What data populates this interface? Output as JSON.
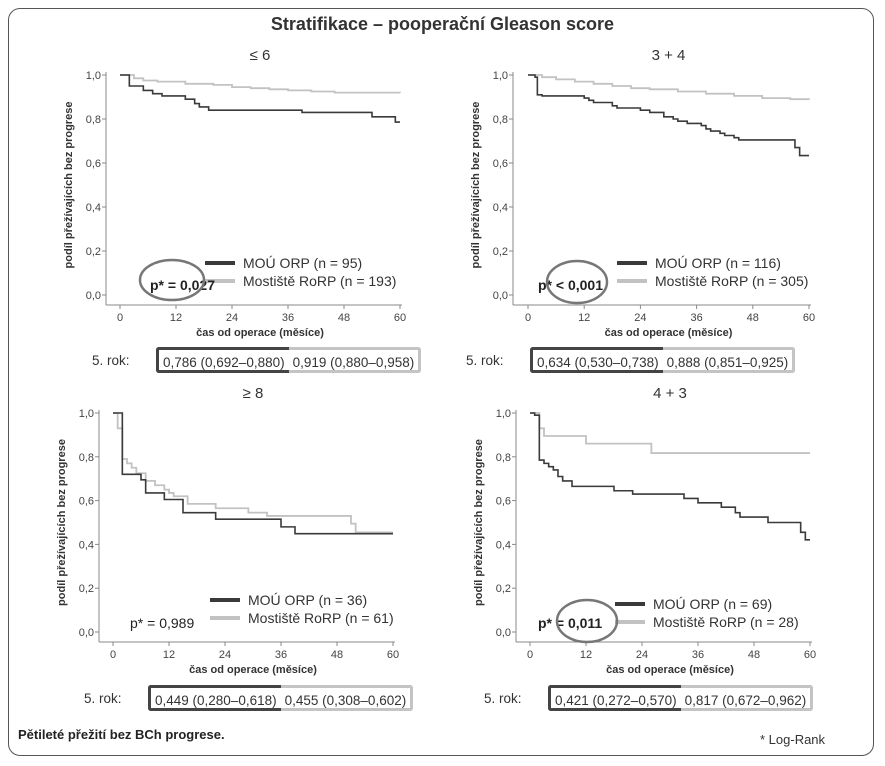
{
  "title": "Stratifikace – pooperační Gleason score",
  "caption": "Pětileté přežití bez BCh progrese.",
  "footnote": "* Log-Rank",
  "year_label": "5. rok:",
  "colors": {
    "orp": "#3a3a3a",
    "rorp": "#c2c2c2",
    "circle": "#777777"
  },
  "chart_data": [
    {
      "type": "line",
      "title": "≤ 6",
      "xlabel": "čas od operace (měsíce)",
      "ylabel": "podíl přežívajících bez progrese",
      "xlim": [
        0,
        60
      ],
      "ylim": [
        0,
        1
      ],
      "xticks": [
        "0",
        "12",
        "24",
        "36",
        "48",
        "60"
      ],
      "yticks": [
        "0,0",
        "0,2",
        "0,4",
        "0,6",
        "0,8",
        "1,0"
      ],
      "p_value": "p* = 0,027",
      "p_circled": true,
      "p_bold": true,
      "series": [
        {
          "name": "MOÚ ORP (n = 95)",
          "color": "#3a3a3a",
          "steps": [
            [
              0,
              1.0
            ],
            [
              2,
              0.95
            ],
            [
              5,
              0.93
            ],
            [
              7,
              0.915
            ],
            [
              9,
              0.905
            ],
            [
              14,
              0.89
            ],
            [
              16,
              0.87
            ],
            [
              17,
              0.855
            ],
            [
              19,
              0.84
            ],
            [
              39,
              0.83
            ],
            [
              54,
              0.81
            ],
            [
              59,
              0.786
            ],
            [
              60,
              0.786
            ]
          ]
        },
        {
          "name": "Mostiště RoRP (n = 193)",
          "color": "#c2c2c2",
          "steps": [
            [
              0,
              1.0
            ],
            [
              3,
              0.985
            ],
            [
              5,
              0.975
            ],
            [
              8,
              0.97
            ],
            [
              14,
              0.96
            ],
            [
              20,
              0.955
            ],
            [
              24,
              0.945
            ],
            [
              28,
              0.94
            ],
            [
              32,
              0.935
            ],
            [
              36,
              0.93
            ],
            [
              41,
              0.925
            ],
            [
              46,
              0.92
            ],
            [
              60,
              0.919
            ]
          ]
        }
      ],
      "year5": {
        "orp": "0,786 (0,692–0,880)",
        "rorp": "0,919 (0,880–0,958)"
      }
    },
    {
      "type": "line",
      "title": "3 + 4",
      "xlabel": "čas od operace (měsíce)",
      "ylabel": "podíl přežívajících bez progrese",
      "xlim": [
        0,
        60
      ],
      "ylim": [
        0,
        1
      ],
      "xticks": [
        "0",
        "12",
        "24",
        "36",
        "48",
        "60"
      ],
      "yticks": [
        "0,0",
        "0,2",
        "0,4",
        "0,6",
        "0,8",
        "1,0"
      ],
      "p_value": "p* < 0,001",
      "p_circled": true,
      "p_bold": true,
      "series": [
        {
          "name": "MOÚ ORP (n = 116)",
          "color": "#3a3a3a",
          "steps": [
            [
              0,
              1.0
            ],
            [
              1.5,
              0.99
            ],
            [
              2,
              0.91
            ],
            [
              3,
              0.905
            ],
            [
              12,
              0.895
            ],
            [
              13,
              0.885
            ],
            [
              14,
              0.875
            ],
            [
              18,
              0.86
            ],
            [
              19,
              0.85
            ],
            [
              24,
              0.84
            ],
            [
              26,
              0.83
            ],
            [
              29,
              0.81
            ],
            [
              31,
              0.8
            ],
            [
              32,
              0.79
            ],
            [
              34,
              0.78
            ],
            [
              37,
              0.77
            ],
            [
              38,
              0.755
            ],
            [
              39,
              0.745
            ],
            [
              41,
              0.735
            ],
            [
              42,
              0.725
            ],
            [
              44,
              0.715
            ],
            [
              45,
              0.705
            ],
            [
              57,
              0.67
            ],
            [
              58,
              0.634
            ],
            [
              60,
              0.634
            ]
          ]
        },
        {
          "name": "Mostiště RoRP (n = 305)",
          "color": "#c2c2c2",
          "steps": [
            [
              0,
              1.0
            ],
            [
              3,
              0.99
            ],
            [
              6,
              0.98
            ],
            [
              10,
              0.97
            ],
            [
              14,
              0.96
            ],
            [
              18,
              0.95
            ],
            [
              22,
              0.94
            ],
            [
              26,
              0.935
            ],
            [
              32,
              0.925
            ],
            [
              38,
              0.915
            ],
            [
              44,
              0.905
            ],
            [
              50,
              0.895
            ],
            [
              56,
              0.89
            ],
            [
              60,
              0.888
            ]
          ]
        }
      ],
      "year5": {
        "orp": "0,634 (0,530–0,738)",
        "rorp": "0,888 (0,851–0,925)"
      }
    },
    {
      "type": "line",
      "title": "≥ 8",
      "xlabel": "čas od operace (měsíce)",
      "ylabel": "podíl přežívajících bez progrese",
      "xlim": [
        0,
        60
      ],
      "ylim": [
        0,
        1
      ],
      "xticks": [
        "0",
        "12",
        "24",
        "36",
        "48",
        "60"
      ],
      "yticks": [
        "0,0",
        "0,2",
        "0,4",
        "0,6",
        "0,8",
        "1,0"
      ],
      "p_value": "p* = 0,989",
      "p_circled": false,
      "p_bold": false,
      "series": [
        {
          "name": "MOÚ ORP (n = 36)",
          "color": "#3a3a3a",
          "steps": [
            [
              0,
              1.0
            ],
            [
              2,
              0.72
            ],
            [
              6,
              0.695
            ],
            [
              7,
              0.635
            ],
            [
              11,
              0.605
            ],
            [
              15,
              0.545
            ],
            [
              22,
              0.515
            ],
            [
              36,
              0.48
            ],
            [
              39,
              0.449
            ],
            [
              60,
              0.449
            ]
          ]
        },
        {
          "name": "Mostiště RoRP (n = 61)",
          "color": "#c2c2c2",
          "steps": [
            [
              0,
              1.0
            ],
            [
              1,
              0.93
            ],
            [
              2,
              0.79
            ],
            [
              3,
              0.77
            ],
            [
              4,
              0.75
            ],
            [
              5,
              0.725
            ],
            [
              7,
              0.69
            ],
            [
              9,
              0.67
            ],
            [
              11,
              0.65
            ],
            [
              12,
              0.635
            ],
            [
              13,
              0.62
            ],
            [
              16,
              0.585
            ],
            [
              22,
              0.565
            ],
            [
              29,
              0.545
            ],
            [
              33,
              0.53
            ],
            [
              51,
              0.495
            ],
            [
              52,
              0.455
            ],
            [
              60,
              0.455
            ]
          ]
        }
      ],
      "year5": {
        "orp": "0,449 (0,280–0,618)",
        "rorp": "0,455 (0,308–0,602)"
      }
    },
    {
      "type": "line",
      "title": "4 + 3",
      "xlabel": "čas od operace (měsíce)",
      "ylabel": "podíl přežívajících bez progrese",
      "xlim": [
        0,
        60
      ],
      "ylim": [
        0,
        1
      ],
      "xticks": [
        "0",
        "12",
        "24",
        "36",
        "48",
        "60"
      ],
      "yticks": [
        "0,0",
        "0,2",
        "0,4",
        "0,6",
        "0,8",
        "1,0"
      ],
      "p_value": "p* = 0,011",
      "p_circled": true,
      "p_bold": true,
      "series": [
        {
          "name": "MOÚ ORP (n = 69)",
          "color": "#3a3a3a",
          "steps": [
            [
              0,
              1.0
            ],
            [
              1,
              0.99
            ],
            [
              2,
              0.785
            ],
            [
              3,
              0.77
            ],
            [
              4,
              0.755
            ],
            [
              5,
              0.74
            ],
            [
              6,
              0.71
            ],
            [
              7,
              0.69
            ],
            [
              9,
              0.665
            ],
            [
              18,
              0.645
            ],
            [
              22,
              0.63
            ],
            [
              33,
              0.61
            ],
            [
              36,
              0.59
            ],
            [
              41,
              0.57
            ],
            [
              44,
              0.545
            ],
            [
              45,
              0.525
            ],
            [
              51,
              0.5
            ],
            [
              58,
              0.455
            ],
            [
              59,
              0.421
            ],
            [
              60,
              0.421
            ]
          ]
        },
        {
          "name": "Mostiště RoRP (n = 28)",
          "color": "#c2c2c2",
          "steps": [
            [
              0,
              1.0
            ],
            [
              2,
              0.93
            ],
            [
              3,
              0.895
            ],
            [
              12,
              0.86
            ],
            [
              26,
              0.817
            ],
            [
              60,
              0.817
            ]
          ]
        }
      ],
      "year5": {
        "orp": "0,421 (0,272–0,570)",
        "rorp": "0,817 (0,672–0,962)"
      }
    }
  ]
}
